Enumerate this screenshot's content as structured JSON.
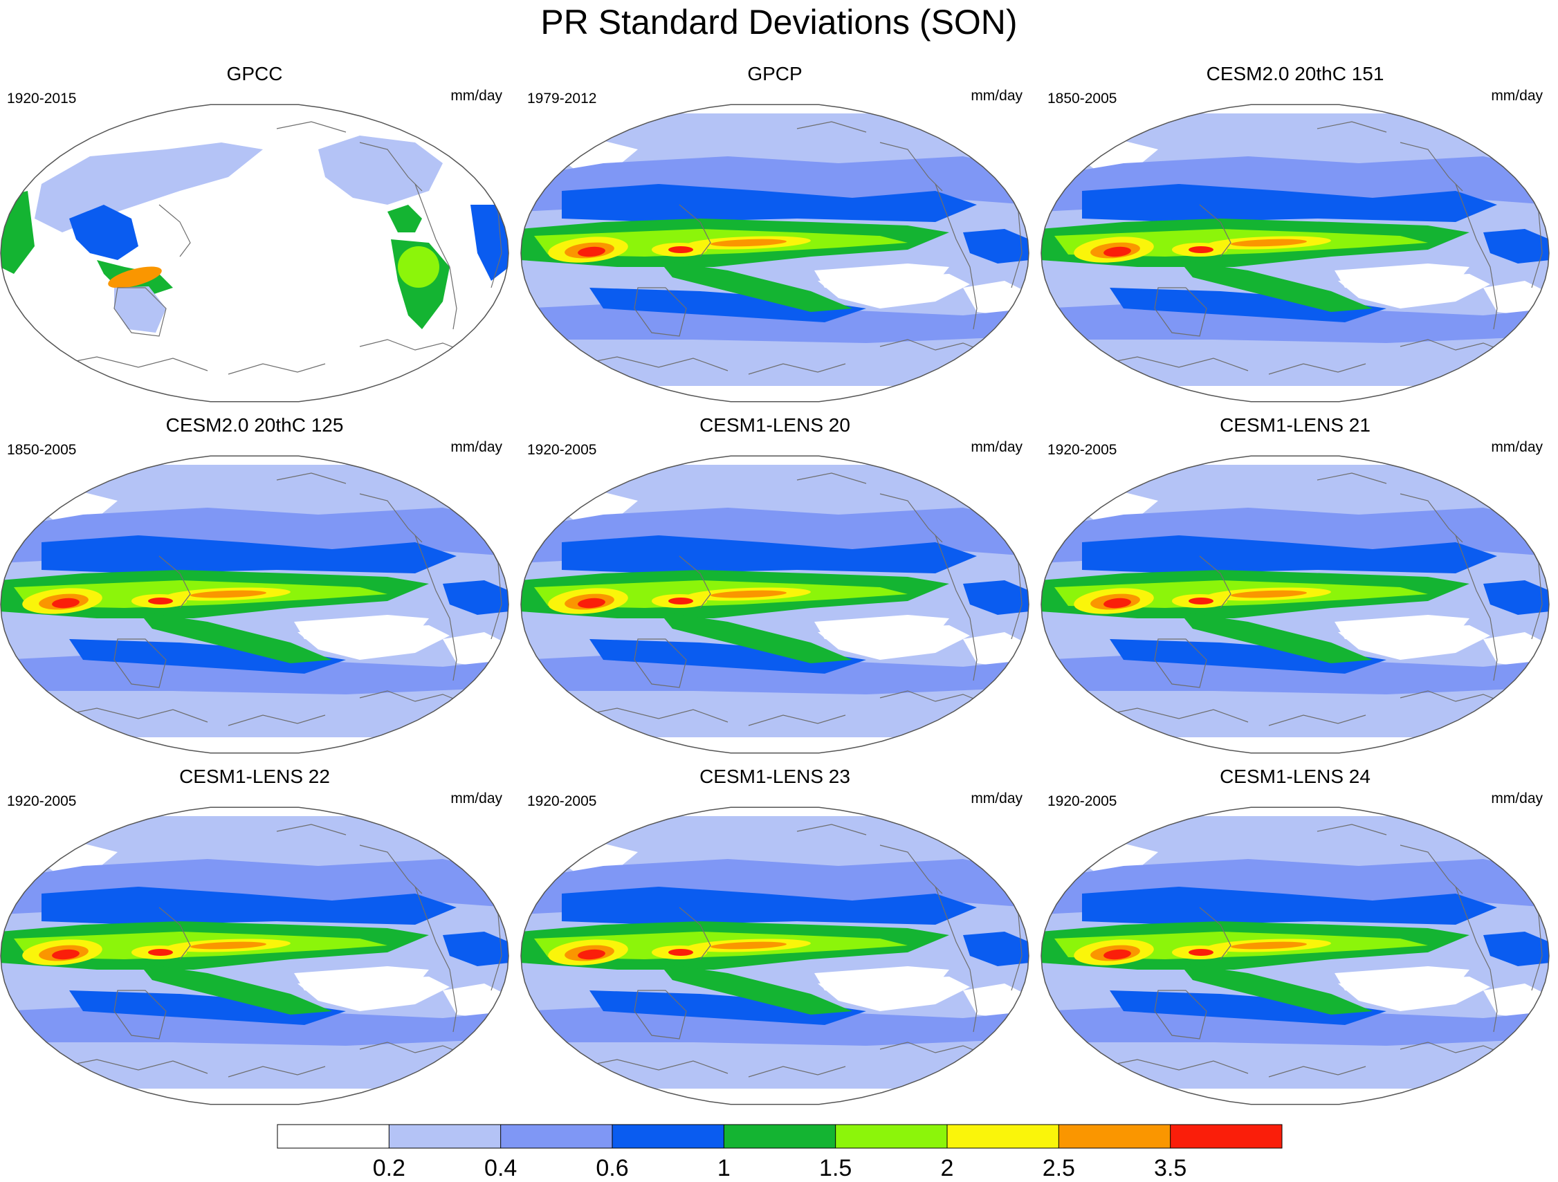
{
  "figure": {
    "title": "PR Standard Deviations (SON)"
  },
  "chart_data": {
    "type": "heatmap",
    "title": "PR Standard Deviations (SON)",
    "projection": "Robinson-like global ellipse, Pacific-centered",
    "panels": [
      {
        "title": "GPCC",
        "period": "1920-2015",
        "units": "mm/day",
        "coverage": "land-only"
      },
      {
        "title": "GPCP",
        "period": "1979-2012",
        "units": "mm/day",
        "coverage": "global"
      },
      {
        "title": "CESM2.0 20thC 151",
        "period": "1850-2005",
        "units": "mm/day",
        "coverage": "global"
      },
      {
        "title": "CESM2.0 20thC 125",
        "period": "1850-2005",
        "units": "mm/day",
        "coverage": "global"
      },
      {
        "title": "CESM1-LENS 20",
        "period": "1920-2005",
        "units": "mm/day",
        "coverage": "global"
      },
      {
        "title": "CESM1-LENS 21",
        "period": "1920-2005",
        "units": "mm/day",
        "coverage": "global"
      },
      {
        "title": "CESM1-LENS 22",
        "period": "1920-2005",
        "units": "mm/day",
        "coverage": "global"
      },
      {
        "title": "CESM1-LENS 23",
        "period": "1920-2005",
        "units": "mm/day",
        "coverage": "global"
      },
      {
        "title": "CESM1-LENS 24",
        "period": "1920-2005",
        "units": "mm/day",
        "coverage": "global"
      }
    ],
    "colorbar": {
      "levels": [
        "0.2",
        "0.4",
        "0.6",
        "1",
        "1.5",
        "2",
        "2.5",
        "3.5"
      ],
      "colors": [
        "#ffffff",
        "#b4c3f6",
        "#7f97f5",
        "#0a5cf0",
        "#14b432",
        "#8cf50a",
        "#faf50a",
        "#fa9600",
        "#fa1e0a"
      ]
    }
  }
}
